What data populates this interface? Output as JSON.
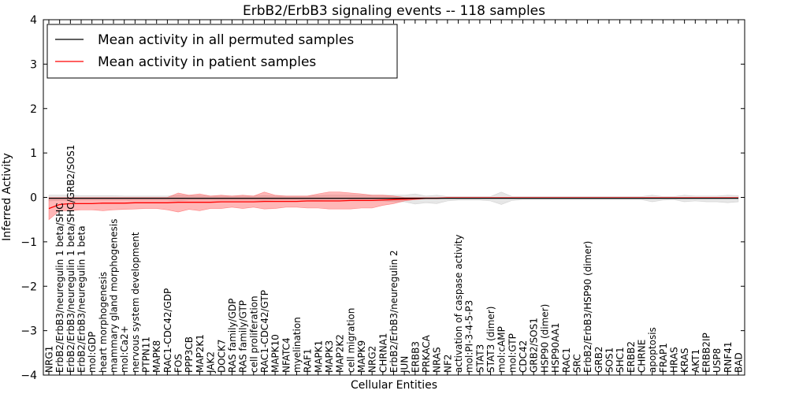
{
  "chart_data": {
    "type": "line",
    "title": "ErbB2/ErbB3 signaling events -- 118 samples",
    "xlabel": "Cellular Entities",
    "ylabel": "Inferred Activity",
    "ylim": [
      -4,
      4
    ],
    "yticks": [
      "4",
      "3",
      "2",
      "1",
      "0",
      "−1",
      "−2",
      "−3",
      "−4"
    ],
    "legend": {
      "position": "top-left",
      "entries": [
        {
          "label": "Mean activity in all permuted samples",
          "color": "#000000"
        },
        {
          "label": "Mean activity in patient samples",
          "color": "#ff0000"
        }
      ]
    },
    "categories": [
      "NRG1",
      "ErbB2/ErbB3/neuregulin 1 beta/SHC",
      "ErbB2/ErbB3/neuregulin 1 beta/SHC/GRB2/SOS1",
      "ErbB2/ErbB3/neuregulin 1 beta",
      "mol:GDP",
      "heart morphogenesis",
      "mammary gland morphogenesis",
      "mol:Ca2+",
      "nervous system development",
      "PTPN11",
      "MAPK8",
      "RAC1-CDC42/GDP",
      "FOS",
      "PPP3CB",
      "MAP2K1",
      "JAK2",
      "DOCK7",
      "RAS family/GDP",
      "RAS family/GTP",
      "cell proliferation",
      "RAC1-CDC42/GTP",
      "MAPK10",
      "NFATC4",
      "myelination",
      "RAF1",
      "MAPK1",
      "MAPK3",
      "MAP2K2",
      "cell migration",
      "MAPK9",
      "NRG2",
      "CHRNA1",
      "ErbB2/ErbB3/neuregulin 2",
      "JUN",
      "ERBB3",
      "PRKACA",
      "NRAS",
      "NF2",
      "activation of caspase activity",
      "mol:PI-3-4-5-P3",
      "STAT3",
      "STAT3 (dimer)",
      "mol:cAMP",
      "mol:GTP",
      "CDC42",
      "GRB2/SOS1",
      "HSP90 (dimer)",
      "HSP90AA1",
      "RAC1",
      "SRC",
      "ErbB2/ErbB3/HSP90 (dimer)",
      "GRB2",
      "SOS1",
      "SHC1",
      "ERBB2",
      "CHRNE",
      "apoptosis",
      "FRAP1",
      "HRAS",
      "KRAS",
      "AKT1",
      "ERBB2IP",
      "USP8",
      "RNF41",
      "BAD"
    ],
    "series": [
      {
        "name": "Mean activity in patient samples",
        "color": "#ff0000",
        "values": [
          -0.25,
          -0.16,
          -0.14,
          -0.14,
          -0.14,
          -0.13,
          -0.13,
          -0.13,
          -0.12,
          -0.12,
          -0.12,
          -0.12,
          -0.11,
          -0.11,
          -0.11,
          -0.11,
          -0.1,
          -0.1,
          -0.1,
          -0.1,
          -0.09,
          -0.09,
          -0.09,
          -0.09,
          -0.08,
          -0.08,
          -0.08,
          -0.08,
          -0.07,
          -0.07,
          -0.07,
          -0.06,
          -0.05,
          -0.04,
          -0.03,
          -0.02,
          -0.02,
          -0.01,
          -0.01,
          -0.01,
          -0.01,
          -0.01,
          -0.01,
          -0.01,
          -0.01,
          -0.01,
          -0.01,
          -0.01,
          -0.01,
          -0.01,
          -0.01,
          -0.01,
          -0.01,
          -0.01,
          -0.01,
          -0.01,
          -0.01,
          -0.01,
          -0.01,
          -0.01,
          -0.01,
          -0.01,
          -0.01,
          -0.01,
          -0.01
        ],
        "upper": [
          0.0,
          0.0,
          0.0,
          0.0,
          0.0,
          0.0,
          0.0,
          0.0,
          0.0,
          0.0,
          0.0,
          0.0,
          0.1,
          0.05,
          0.08,
          0.03,
          0.05,
          0.03,
          0.05,
          0.03,
          0.12,
          0.05,
          0.03,
          0.03,
          0.03,
          0.08,
          0.12,
          0.12,
          0.1,
          0.08,
          0.05,
          0.05,
          0.03,
          0.0,
          0.0,
          0.0,
          0.0,
          0.0,
          0.0,
          0.0,
          0.0,
          0.0,
          0.0,
          0.0,
          0.0,
          0.0,
          0.0,
          0.0,
          0.0,
          0.0,
          0.0,
          0.0,
          0.0,
          0.0,
          0.0,
          0.0,
          0.0,
          0.0,
          0.0,
          0.0,
          0.0,
          0.0,
          0.0,
          0.0,
          0.0
        ],
        "lower": [
          -0.5,
          -0.3,
          -0.3,
          -0.28,
          -0.28,
          -0.3,
          -0.28,
          -0.27,
          -0.26,
          -0.25,
          -0.25,
          -0.28,
          -0.33,
          -0.27,
          -0.3,
          -0.25,
          -0.25,
          -0.22,
          -0.25,
          -0.22,
          -0.26,
          -0.25,
          -0.22,
          -0.22,
          -0.24,
          -0.24,
          -0.26,
          -0.26,
          -0.26,
          -0.24,
          -0.24,
          -0.18,
          -0.14,
          -0.08,
          -0.05,
          -0.03,
          -0.03,
          -0.02,
          -0.02,
          -0.02,
          -0.02,
          -0.02,
          -0.02,
          -0.02,
          -0.02,
          -0.02,
          -0.02,
          -0.02,
          -0.02,
          -0.02,
          -0.02,
          -0.02,
          -0.02,
          -0.02,
          -0.02,
          -0.02,
          -0.02,
          -0.02,
          -0.02,
          -0.02,
          -0.02,
          -0.02,
          -0.02,
          -0.02,
          -0.02
        ]
      },
      {
        "name": "Mean activity in all permuted samples",
        "color": "#000000",
        "values": [
          -0.02,
          -0.02,
          -0.02,
          -0.02,
          -0.02,
          -0.02,
          -0.02,
          -0.02,
          -0.02,
          -0.02,
          -0.02,
          -0.02,
          -0.02,
          -0.02,
          -0.02,
          -0.02,
          -0.02,
          -0.02,
          -0.02,
          -0.02,
          -0.02,
          -0.02,
          -0.02,
          -0.02,
          -0.02,
          -0.02,
          -0.02,
          -0.02,
          -0.02,
          -0.02,
          -0.02,
          -0.02,
          -0.02,
          -0.02,
          -0.02,
          -0.02,
          -0.02,
          -0.02,
          -0.02,
          -0.02,
          -0.02,
          -0.02,
          -0.02,
          -0.02,
          -0.02,
          -0.02,
          -0.02,
          -0.02,
          -0.02,
          -0.02,
          -0.02,
          -0.02,
          -0.02,
          -0.02,
          -0.02,
          -0.02,
          -0.02,
          -0.02,
          -0.02,
          -0.02,
          -0.02,
          -0.02,
          -0.02,
          -0.02,
          -0.02
        ],
        "upper": [
          0.05,
          0.05,
          0.05,
          0.04,
          0.04,
          0.04,
          0.04,
          0.03,
          0.03,
          0.03,
          0.03,
          0.03,
          0.05,
          0.04,
          0.04,
          0.03,
          0.03,
          0.03,
          0.03,
          0.03,
          0.04,
          0.03,
          0.03,
          0.03,
          0.03,
          0.04,
          0.05,
          0.05,
          0.05,
          0.05,
          0.05,
          0.05,
          0.05,
          0.05,
          0.08,
          0.03,
          0.05,
          0.02,
          0.02,
          0.02,
          0.02,
          0.02,
          0.12,
          0.02,
          0.02,
          0.02,
          0.02,
          0.02,
          0.02,
          0.02,
          0.02,
          0.02,
          0.02,
          0.02,
          0.02,
          0.02,
          0.05,
          0.02,
          0.02,
          0.05,
          0.03,
          0.03,
          0.03,
          0.05,
          0.04
        ],
        "lower": [
          -0.08,
          -0.07,
          -0.07,
          -0.06,
          -0.06,
          -0.06,
          -0.06,
          -0.06,
          -0.06,
          -0.06,
          -0.06,
          -0.06,
          -0.08,
          -0.06,
          -0.06,
          -0.06,
          -0.06,
          -0.06,
          -0.06,
          -0.06,
          -0.07,
          -0.06,
          -0.06,
          -0.06,
          -0.06,
          -0.07,
          -0.08,
          -0.08,
          -0.08,
          -0.08,
          -0.08,
          -0.08,
          -0.1,
          -0.1,
          -0.15,
          -0.12,
          -0.14,
          -0.08,
          -0.06,
          -0.06,
          -0.06,
          -0.08,
          -0.16,
          -0.07,
          -0.05,
          -0.05,
          -0.05,
          -0.05,
          -0.05,
          -0.05,
          -0.05,
          -0.05,
          -0.05,
          -0.05,
          -0.05,
          -0.05,
          -0.1,
          -0.06,
          -0.05,
          -0.1,
          -0.08,
          -0.1,
          -0.1,
          -0.12,
          -0.1
        ]
      }
    ]
  }
}
